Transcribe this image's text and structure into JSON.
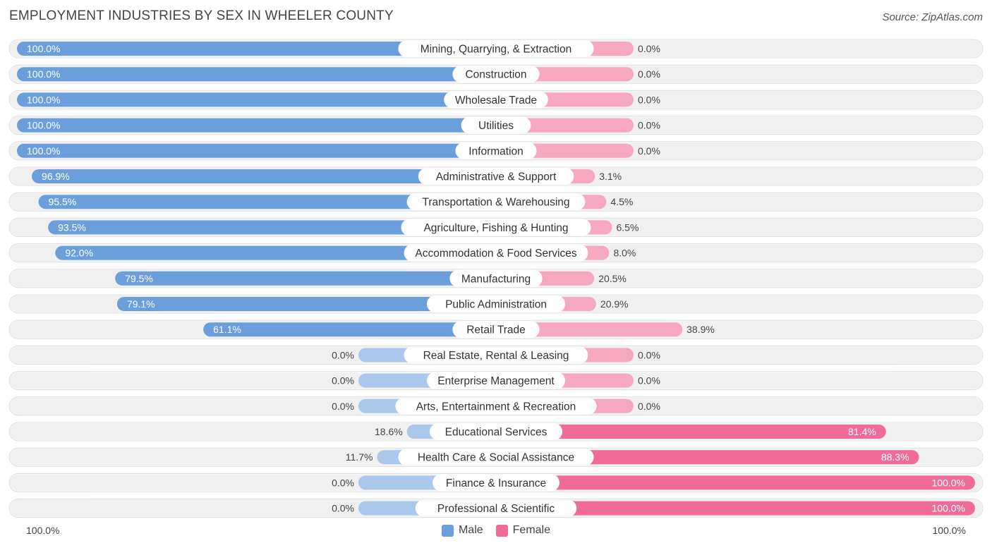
{
  "header": {
    "title": "EMPLOYMENT INDUSTRIES BY SEX IN WHEELER COUNTY",
    "source": "Source: ZipAtlas.com"
  },
  "colors": {
    "male": "#6a9fdc",
    "male_light": "#a9c8ec",
    "female": "#f06b98",
    "female_light": "#f6a8c1",
    "row_bg": "#f0f0f0"
  },
  "chart_data": {
    "type": "bar",
    "orientation": "horizontal-diverging",
    "title": "EMPLOYMENT INDUSTRIES BY SEX IN WHEELER COUNTY",
    "categories": [
      "Mining, Quarrying, & Extraction",
      "Construction",
      "Wholesale Trade",
      "Utilities",
      "Information",
      "Administrative & Support",
      "Transportation & Warehousing",
      "Agriculture, Fishing & Hunting",
      "Accommodation & Food Services",
      "Manufacturing",
      "Public Administration",
      "Retail Trade",
      "Real Estate, Rental & Leasing",
      "Enterprise Management",
      "Arts, Entertainment & Recreation",
      "Educational Services",
      "Health Care & Social Assistance",
      "Finance & Insurance",
      "Professional & Scientific"
    ],
    "series": [
      {
        "name": "Male",
        "values": [
          100.0,
          100.0,
          100.0,
          100.0,
          100.0,
          96.9,
          95.5,
          93.5,
          92.0,
          79.5,
          79.1,
          61.1,
          0.0,
          0.0,
          0.0,
          18.6,
          11.7,
          0.0,
          0.0
        ],
        "labels": [
          "100.0%",
          "100.0%",
          "100.0%",
          "100.0%",
          "100.0%",
          "96.9%",
          "95.5%",
          "93.5%",
          "92.0%",
          "79.5%",
          "79.1%",
          "61.1%",
          "0.0%",
          "0.0%",
          "0.0%",
          "18.6%",
          "11.7%",
          "0.0%",
          "0.0%"
        ]
      },
      {
        "name": "Female",
        "values": [
          0.0,
          0.0,
          0.0,
          0.0,
          0.0,
          3.1,
          4.5,
          6.5,
          8.0,
          20.5,
          20.9,
          38.9,
          0.0,
          0.0,
          0.0,
          81.4,
          88.3,
          100.0,
          100.0
        ],
        "labels": [
          "0.0%",
          "0.0%",
          "0.0%",
          "0.0%",
          "0.0%",
          "3.1%",
          "4.5%",
          "6.5%",
          "8.0%",
          "20.5%",
          "20.9%",
          "38.9%",
          "0.0%",
          "0.0%",
          "0.0%",
          "81.4%",
          "88.3%",
          "100.0%",
          "100.0%"
        ]
      }
    ],
    "xlim": [
      -100,
      100
    ],
    "axis_labels": {
      "left": "100.0%",
      "right": "100.0%"
    },
    "legend": [
      "Male",
      "Female"
    ],
    "legend_position": "bottom-center"
  }
}
